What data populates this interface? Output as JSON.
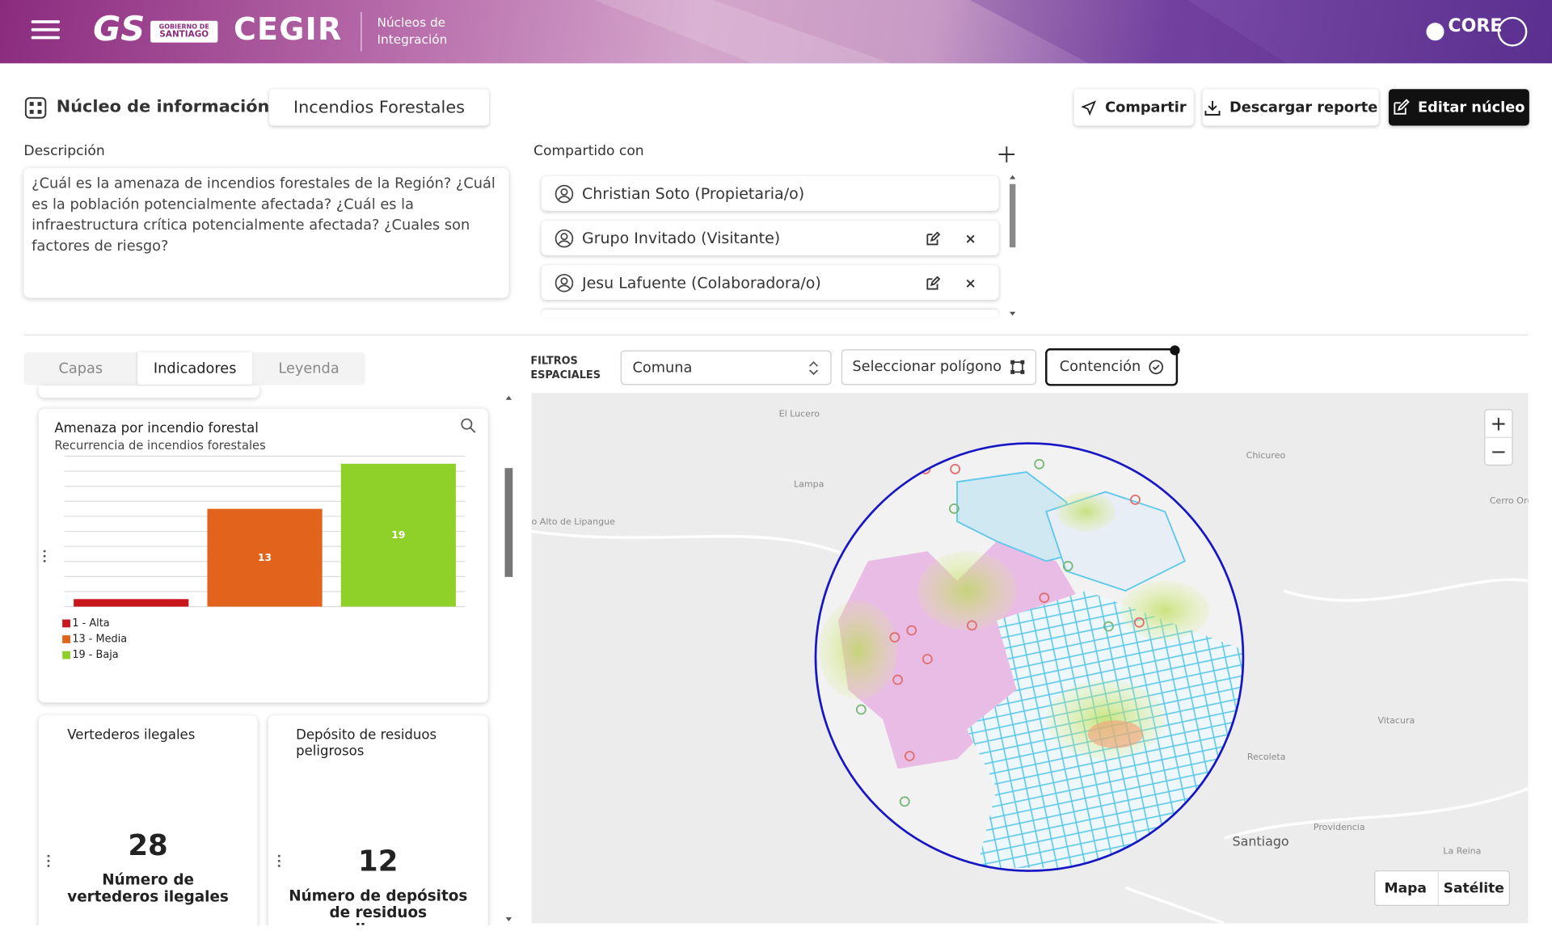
{
  "header": {
    "logo_gs": "GS",
    "logo_gobierno_1": "GOBIERNO DE",
    "logo_gobierno_2": "SANTIAGO",
    "logo_cegir": "CEGIR",
    "app_name_1": "Núcleos de",
    "app_name_2": "Integración",
    "logo_core": "CORE"
  },
  "toolbar": {
    "section": "Núcleo de información",
    "nucleus_name": "Incendios Forestales",
    "buttons": [
      "Compartir",
      "Descargar reporte",
      "Editar núcleo"
    ]
  },
  "description": {
    "label": "Descripción",
    "text": "¿Cuál es la amenaza de incendios forestales de la Región? ¿Cuál es la población potencialmente afectada? ¿Cuál es la infraestructura crítica potencialmente afectada? ¿Cuales son factores de riesgo?"
  },
  "shared": {
    "label": "Compartido con",
    "users": [
      "Christian Soto (Propietaria/o)",
      "Grupo Invitado (Visitante)",
      "Jesu Lafuente (Colaboradora/o)"
    ]
  },
  "tabs": [
    "Capas",
    "Indicadores",
    "Leyenda"
  ],
  "filters": {
    "label_1": "FILTROS",
    "label_2": "ESPACIALES",
    "select": "Comuna",
    "polygon": "Seleccionar polígono",
    "containment": "Contención"
  },
  "indicator_chart": {
    "type": "bar",
    "title": "Amenaza por incendio forestal",
    "subtitle": "Recurrencia de incendios forestales",
    "categories": [
      "Alta",
      "Media",
      "Baja"
    ],
    "values": [
      1,
      13,
      19
    ],
    "colors": [
      "#c8161d",
      "#e2631b",
      "#8fd129"
    ],
    "legend": [
      "1 - Alta",
      "13 - Media",
      "19 - Baja"
    ],
    "ylim": [
      0,
      20
    ],
    "yticks": [
      0,
      2,
      4,
      6,
      8,
      10,
      12,
      14,
      16,
      18,
      20
    ],
    "grid": true
  },
  "kpis": [
    {
      "title": "Vertederos ilegales",
      "value": 28,
      "label": "Número de vertederos ilegales"
    },
    {
      "title": "Depósito de residuos peligrosos",
      "value": 12,
      "label": "Número de depósitos de residuos peligrosos"
    }
  ],
  "map": {
    "labels": [
      "El Lucero",
      "Lampa",
      "o Alto de Lipangue",
      "Chicureo",
      "Santiago",
      "Providencia",
      "Vitacura",
      "Recoleta",
      "La Reina",
      "Cerro Orégano"
    ],
    "zoom_in": "+",
    "zoom_out": "−",
    "view_map": "Mapa",
    "view_satellite": "Satélite"
  }
}
